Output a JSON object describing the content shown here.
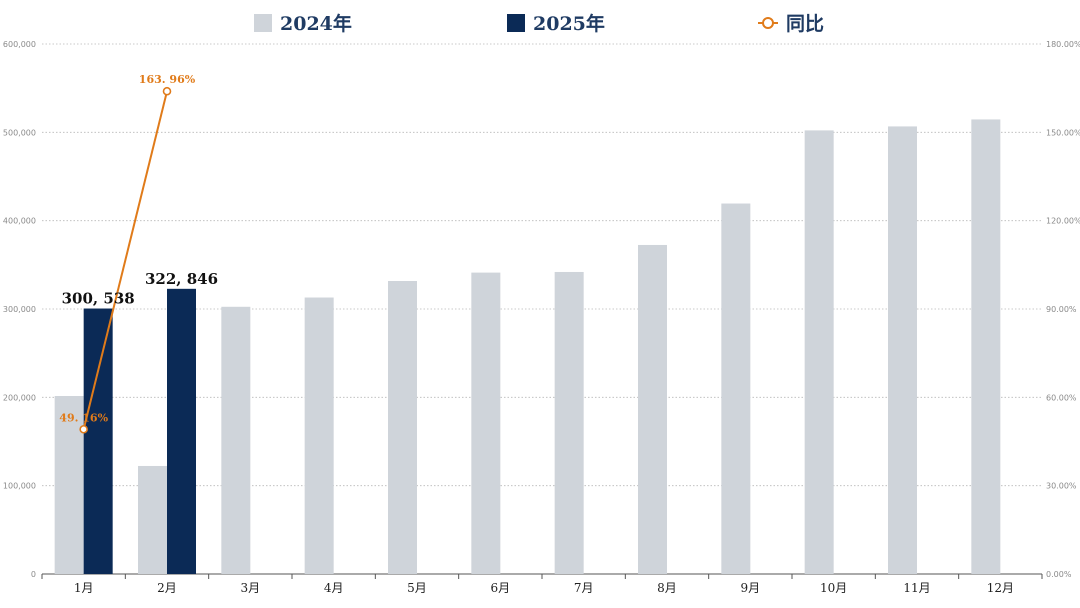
{
  "chart_data": {
    "type": "bar",
    "categories": [
      "1月",
      "2月",
      "3月",
      "4月",
      "5月",
      "6月",
      "7月",
      "8月",
      "9月",
      "10月",
      "11月",
      "12月"
    ],
    "series": [
      {
        "name": "2024年",
        "kind": "bar",
        "color": "#cfd4da",
        "values": [
          201500,
          122300,
          302500,
          313000,
          331700,
          341200,
          341900,
          372500,
          419400,
          502200,
          506700,
          514600
        ]
      },
      {
        "name": "2025年",
        "kind": "bar",
        "color": "#0b2a56",
        "values": [
          300538,
          322846,
          null,
          null,
          null,
          null,
          null,
          null,
          null,
          null,
          null,
          null
        ],
        "data_labels": [
          "300, 538",
          "322, 846"
        ]
      },
      {
        "name": "同比",
        "kind": "line",
        "axis": "right",
        "color": "#e07b1a",
        "values": [
          49.16,
          163.96,
          null,
          null,
          null,
          null,
          null,
          null,
          null,
          null,
          null,
          null
        ],
        "data_labels": [
          "49. 16%",
          "163. 96%"
        ]
      }
    ],
    "y_left": {
      "ylim": [
        0,
        600000
      ],
      "ticks": [
        0,
        100000,
        200000,
        300000,
        400000,
        500000,
        600000
      ],
      "tick_labels": [
        "0",
        "100,000",
        "200,000",
        "300,000",
        "400,000",
        "500,000",
        "600,000"
      ]
    },
    "y_right": {
      "ylim": [
        0,
        180
      ],
      "ticks": [
        0,
        30,
        60,
        90,
        120,
        150,
        180
      ],
      "tick_labels": [
        "0.00%",
        "30.00%",
        "60.00%",
        "90.00%",
        "120.00%",
        "150.00%",
        "180.00%"
      ]
    },
    "grid": true,
    "grid_style": "dotted",
    "legend": "top-center",
    "title": "",
    "xlabel": "",
    "ylabel": ""
  }
}
